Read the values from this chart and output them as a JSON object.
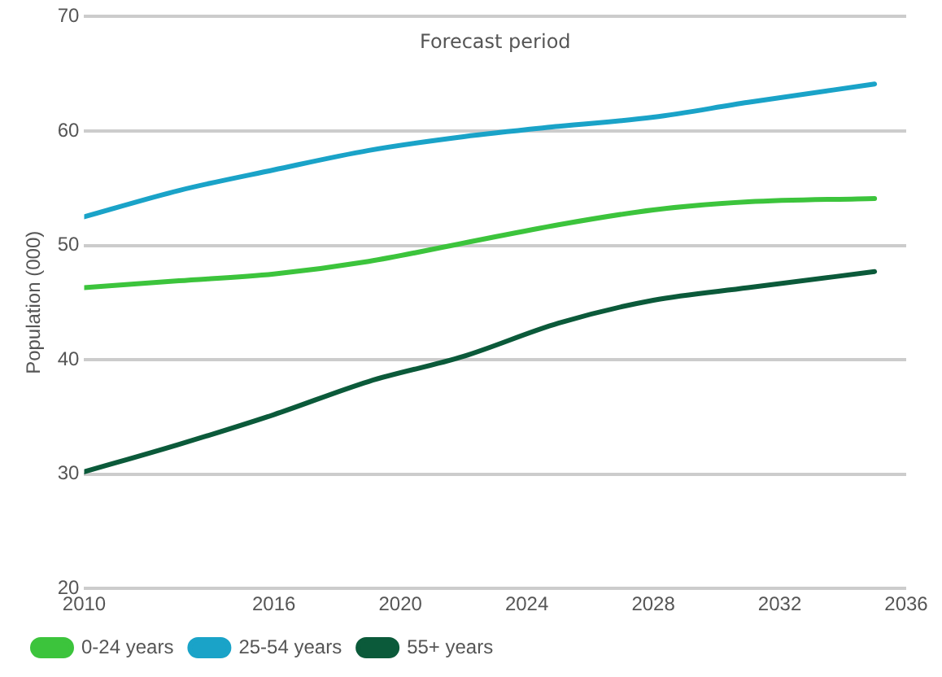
{
  "chart_data": {
    "type": "line",
    "ylabel": "Population (000)",
    "annotations": [
      "Forecast period"
    ],
    "x": [
      2010,
      2013,
      2016,
      2019,
      2022,
      2025,
      2028,
      2031,
      2035
    ],
    "series": [
      {
        "name": "0-24 years",
        "color": "#3cc43c",
        "values": [
          46.3,
          46.9,
          47.5,
          48.6,
          50.2,
          51.8,
          53.1,
          53.8,
          54.1
        ]
      },
      {
        "name": "25-54 years",
        "color": "#1aa3c8",
        "values": [
          52.5,
          54.8,
          56.6,
          58.3,
          59.5,
          60.4,
          61.2,
          62.5,
          64.1
        ]
      },
      {
        "name": "55+ years",
        "color": "#0b5a3a",
        "values": [
          30.2,
          32.6,
          35.2,
          38.1,
          40.3,
          43.2,
          45.2,
          46.3,
          47.7
        ]
      }
    ],
    "xlim": [
      2010,
      2036
    ],
    "xticks": [
      2010,
      2016,
      2020,
      2024,
      2028,
      2032,
      2036
    ],
    "ylim": [
      20,
      70
    ],
    "yticks": [
      20,
      30,
      40,
      50,
      60,
      70
    ],
    "grid": "y",
    "legend": "bottom left",
    "marker": "none",
    "line_style": "solid"
  }
}
